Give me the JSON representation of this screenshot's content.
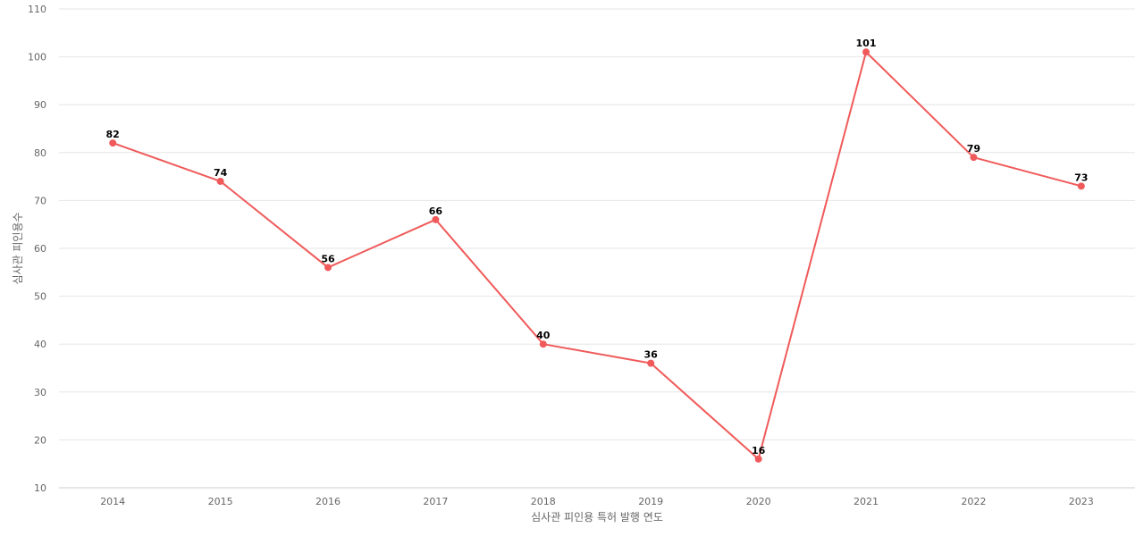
{
  "chart_data": {
    "type": "line",
    "xlabel": "심사관 피인용 특허 발행 연도",
    "ylabel": "심사관 피인용수",
    "categories": [
      "2014",
      "2015",
      "2016",
      "2017",
      "2018",
      "2019",
      "2020",
      "2021",
      "2022",
      "2023"
    ],
    "series": [
      {
        "values": [
          82,
          74,
          56,
          66,
          40,
          36,
          16,
          101,
          79,
          73
        ]
      }
    ],
    "ylim": [
      10,
      110
    ],
    "yticks": [
      10,
      20,
      30,
      40,
      50,
      60,
      70,
      80,
      90,
      100,
      110
    ],
    "grid": true,
    "legend": "none",
    "colors": {
      "line": "#f05a5a",
      "point": "#f05a5a",
      "grid": "#e6e6e6",
      "axis": "#cccccc"
    }
  }
}
